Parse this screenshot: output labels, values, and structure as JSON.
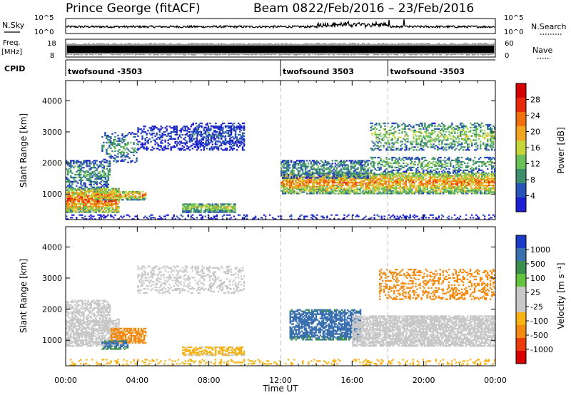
{
  "header": {
    "station": "Prince George (fitACF)",
    "beam": "Beam 08",
    "date_range": "22/Feb/2016 – 23/Feb/2016"
  },
  "strip_labels": {
    "nsky": "N.Sky",
    "nsky_ticks": [
      "10^5",
      "10^0"
    ],
    "nsearch": "N.Search",
    "freq": "Freq.",
    "freq_unit": "[MHz]",
    "freq_ticks": [
      "18",
      "8"
    ],
    "nave": "Nave",
    "nave_ticks": [
      "60",
      "0"
    ],
    "cpid": "CPID"
  },
  "cpid_segments": [
    {
      "label": "twofsound -3503",
      "start_hour": 0
    },
    {
      "label": "twofsound 3503",
      "start_hour": 12
    },
    {
      "label": "twofsound -3503",
      "start_hour": 18
    }
  ],
  "colors": {
    "power": [
      "#1e1ed2",
      "#2a55b8",
      "#3f8f6e",
      "#6cc05a",
      "#c6d63a",
      "#f2a51e",
      "#f07010",
      "#e82a0a",
      "#d40000"
    ],
    "velocity": [
      "#1a3cc8",
      "#3a70b0",
      "#3d8f4e",
      "#66c33f",
      "#c8c8c8",
      "#c8c8c8",
      "#f7b215",
      "#f38a12",
      "#ea3c0c",
      "#d80000"
    ]
  },
  "chart_data": [
    {
      "type": "heatmap",
      "name": "power",
      "xlabel": "Time UT",
      "ylabel": "Slant Range [km]",
      "xlim": [
        0,
        24
      ],
      "ylim": [
        180,
        4650
      ],
      "x_ticks": [
        "00:00",
        "04:00",
        "08:00",
        "12:00",
        "16:00",
        "20:00",
        "00:00"
      ],
      "y_ticks": [
        1000,
        2000,
        3000,
        4000
      ],
      "colorbar_label": "Power [dB]",
      "colorbar_ticks": [
        4,
        8,
        12,
        16,
        20,
        24,
        28
      ],
      "regions": [
        {
          "t0": 0.0,
          "t1": 3.0,
          "r0": 400,
          "r1": 1200,
          "value": 26,
          "density": 0.8
        },
        {
          "t0": 0.0,
          "t1": 2.5,
          "r0": 1200,
          "r1": 2100,
          "value": 12,
          "density": 0.5
        },
        {
          "t0": 1.5,
          "t1": 4.5,
          "r0": 800,
          "r1": 1100,
          "value": 24,
          "density": 0.7
        },
        {
          "t0": 2.0,
          "t1": 4.0,
          "r0": 2000,
          "r1": 3000,
          "value": 12,
          "density": 0.3
        },
        {
          "t0": 4.0,
          "t1": 10.0,
          "r0": 2400,
          "r1": 3200,
          "value": 6,
          "density": 0.35
        },
        {
          "t0": 6.5,
          "t1": 9.5,
          "r0": 400,
          "r1": 700,
          "value": 18,
          "density": 0.8
        },
        {
          "t0": 7.0,
          "t1": 10.0,
          "r0": 2500,
          "r1": 3300,
          "value": 8,
          "density": 0.3
        },
        {
          "t0": 12.0,
          "t1": 24.0,
          "r0": 1000,
          "r1": 1700,
          "value": 24,
          "density": 0.75
        },
        {
          "t0": 12.0,
          "t1": 17.0,
          "r0": 1500,
          "r1": 2100,
          "value": 12,
          "density": 0.55
        },
        {
          "t0": 17.0,
          "t1": 24.0,
          "r0": 1700,
          "r1": 2200,
          "value": 14,
          "density": 0.4
        },
        {
          "t0": 17.0,
          "t1": 24.0,
          "r0": 2400,
          "r1": 3300,
          "value": 16,
          "density": 0.35
        },
        {
          "t0": 0.0,
          "t1": 24.0,
          "r0": 180,
          "r1": 350,
          "value": 5,
          "density": 0.25
        }
      ]
    },
    {
      "type": "heatmap",
      "name": "velocity",
      "xlabel": "Time UT",
      "ylabel": "Slant Range [km]",
      "xlim": [
        0,
        24
      ],
      "ylim": [
        180,
        4650
      ],
      "x_ticks": [
        "00:00",
        "04:00",
        "08:00",
        "12:00",
        "16:00",
        "20:00",
        "00:00"
      ],
      "y_ticks": [
        1000,
        2000,
        3000,
        4000
      ],
      "colorbar_label": "Velocity [m s⁻¹]",
      "colorbar_ticks": [
        1000,
        500,
        100,
        25,
        -25,
        -100,
        -500,
        -1000
      ],
      "regions": [
        {
          "t0": 0.0,
          "t1": 3.0,
          "r0": 800,
          "r1": 1700,
          "value": 0,
          "density": 0.7
        },
        {
          "t0": 0.0,
          "t1": 2.5,
          "r0": 1700,
          "r1": 2300,
          "value": 0,
          "density": 0.5
        },
        {
          "t0": 2.5,
          "t1": 4.5,
          "r0": 900,
          "r1": 1400,
          "value": -300,
          "density": 0.7
        },
        {
          "t0": 2.0,
          "t1": 3.5,
          "r0": 700,
          "r1": 1000,
          "value": 150,
          "density": 0.6
        },
        {
          "t0": 4.0,
          "t1": 10.0,
          "r0": 2500,
          "r1": 3400,
          "value": 0,
          "density": 0.3
        },
        {
          "t0": 6.5,
          "t1": 10.0,
          "r0": 500,
          "r1": 800,
          "value": -50,
          "density": 0.6
        },
        {
          "t0": 12.5,
          "t1": 16.5,
          "r0": 1000,
          "r1": 2000,
          "value": 200,
          "density": 0.7
        },
        {
          "t0": 16.0,
          "t1": 24.0,
          "r0": 800,
          "r1": 1800,
          "value": 0,
          "density": 0.75
        },
        {
          "t0": 17.5,
          "t1": 24.0,
          "r0": 2300,
          "r1": 3300,
          "value": -400,
          "density": 0.3
        },
        {
          "t0": 0.0,
          "t1": 24.0,
          "r0": 180,
          "r1": 400,
          "value": -60,
          "density": 0.2
        }
      ]
    }
  ]
}
